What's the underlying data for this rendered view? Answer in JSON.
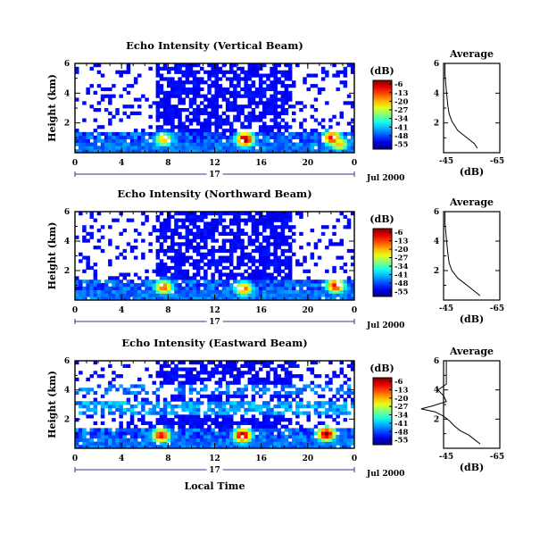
{
  "chart_data": {
    "type": "heatmap",
    "panels": [
      {
        "id": "vertical",
        "title": "Echo Intensity (Vertical Beam)",
        "profile": [
          [
            0.3,
            -57
          ],
          [
            0.6,
            -56
          ],
          [
            0.9,
            -54
          ],
          [
            1.2,
            -52
          ],
          [
            1.5,
            -50
          ],
          [
            1.8,
            -49
          ],
          [
            2.1,
            -48
          ],
          [
            2.6,
            -47
          ],
          [
            3.2,
            -46.5
          ],
          [
            4.2,
            -46
          ],
          [
            5.2,
            -45.5
          ],
          [
            6,
            -45.5
          ]
        ],
        "hotspots": [
          [
            14.6,
            0.9,
            1.0
          ],
          [
            7.6,
            0.9,
            0.7
          ],
          [
            22.1,
            1.0,
            0.9
          ],
          [
            22.7,
            0.6,
            0.7
          ]
        ]
      },
      {
        "id": "northward",
        "title": "Echo Intensity (Northward Beam)",
        "profile": [
          [
            0.3,
            -58
          ],
          [
            0.6,
            -56
          ],
          [
            0.9,
            -54
          ],
          [
            1.2,
            -52
          ],
          [
            1.5,
            -50
          ],
          [
            2,
            -48
          ],
          [
            2.5,
            -47
          ],
          [
            3.2,
            -46.5
          ],
          [
            4.2,
            -46
          ],
          [
            5.2,
            -45.5
          ],
          [
            6,
            -45.5
          ]
        ],
        "hotspots": [
          [
            7.6,
            0.9,
            0.8
          ],
          [
            14.5,
            0.8,
            0.8
          ],
          [
            22.4,
            1.0,
            0.9
          ]
        ]
      },
      {
        "id": "eastward",
        "title": "Echo Intensity (Eastward Beam)",
        "profile": [
          [
            0.3,
            -58
          ],
          [
            0.6,
            -56
          ],
          [
            0.9,
            -54
          ],
          [
            1.2,
            -51
          ],
          [
            1.5,
            -49
          ],
          [
            1.9,
            -47
          ],
          [
            2.2,
            -45
          ],
          [
            2.5,
            -42
          ],
          [
            2.7,
            -37
          ],
          [
            2.9,
            -41
          ],
          [
            3.2,
            -46
          ],
          [
            3.6,
            -45
          ],
          [
            4.0,
            -43
          ],
          [
            4.4,
            -46
          ],
          [
            5,
            -46
          ],
          [
            6,
            -46
          ]
        ],
        "hotspots": [
          [
            7.4,
            0.9,
            0.9
          ],
          [
            14.4,
            0.9,
            1.0
          ],
          [
            21.6,
            1.0,
            1.0
          ]
        ]
      }
    ],
    "x_ticks": [
      "0",
      "4",
      "8",
      "12",
      "16",
      "20",
      "0"
    ],
    "y_ticks": [
      "2",
      "4",
      "6"
    ],
    "xlim": [
      0,
      24
    ],
    "ylim": [
      0,
      6
    ],
    "date_day": "17",
    "date_label": "Jul 2000",
    "xlabel": "Local Time",
    "ylabel": "Height (km)",
    "colorbar": {
      "unit": "(dB)",
      "ticks": [
        "-6",
        "-13",
        "-20",
        "-27",
        "-34",
        "-41",
        "-48",
        "-55"
      ],
      "range": [
        -59,
        -3
      ]
    },
    "profile_title": "Average",
    "profile_xlabel": "(dB)",
    "profile_xticks": [
      "-45",
      "-65"
    ],
    "profile_xlim": [
      -65,
      -45
    ]
  }
}
